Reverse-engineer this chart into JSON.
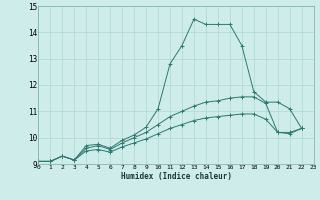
{
  "xlabel": "Humidex (Indice chaleur)",
  "xlim": [
    0,
    23
  ],
  "ylim": [
    9,
    15
  ],
  "yticks": [
    9,
    10,
    11,
    12,
    13,
    14,
    15
  ],
  "xticks": [
    0,
    1,
    2,
    3,
    4,
    5,
    6,
    7,
    8,
    9,
    10,
    11,
    12,
    13,
    14,
    15,
    16,
    17,
    18,
    19,
    20,
    21,
    22,
    23
  ],
  "xtick_labels": [
    "0",
    "1",
    "2",
    "3",
    "4",
    "5",
    "6",
    "7",
    "8",
    "9",
    "10",
    "11",
    "12",
    "13",
    "14",
    "15",
    "16",
    "17",
    "18",
    "19",
    "20",
    "21",
    "22",
    "23"
  ],
  "bg_color": "#cdecea",
  "line_color": "#2d7a6e",
  "grid_color": "#b0d8d4",
  "lines": [
    {
      "x": [
        0,
        1,
        2,
        3,
        4,
        5,
        6,
        7,
        8,
        9,
        10,
        11,
        12,
        13,
        14,
        15,
        16,
        17,
        18,
        19,
        20,
        21,
        22
      ],
      "y": [
        9.1,
        9.1,
        9.3,
        9.15,
        9.7,
        9.75,
        9.6,
        9.9,
        10.1,
        10.4,
        11.1,
        12.8,
        13.5,
        14.5,
        14.3,
        14.3,
        14.3,
        13.5,
        11.75,
        11.35,
        11.35,
        11.1,
        10.35
      ]
    },
    {
      "x": [
        0,
        1,
        2,
        3,
        4,
        5,
        6,
        7,
        8,
        9,
        10,
        11,
        12,
        13,
        14,
        15,
        16,
        17,
        18,
        19,
        20,
        21,
        22
      ],
      "y": [
        9.1,
        9.1,
        9.3,
        9.15,
        9.6,
        9.7,
        9.55,
        9.8,
        10.0,
        10.2,
        10.5,
        10.8,
        11.0,
        11.2,
        11.35,
        11.4,
        11.5,
        11.55,
        11.55,
        11.3,
        10.2,
        10.2,
        10.35
      ]
    },
    {
      "x": [
        0,
        1,
        2,
        3,
        4,
        5,
        6,
        7,
        8,
        9,
        10,
        11,
        12,
        13,
        14,
        15,
        16,
        17,
        18,
        19,
        20,
        21,
        22
      ],
      "y": [
        9.1,
        9.1,
        9.3,
        9.15,
        9.5,
        9.55,
        9.45,
        9.65,
        9.8,
        9.95,
        10.15,
        10.35,
        10.5,
        10.65,
        10.75,
        10.8,
        10.85,
        10.9,
        10.9,
        10.7,
        10.2,
        10.15,
        10.35
      ]
    }
  ]
}
